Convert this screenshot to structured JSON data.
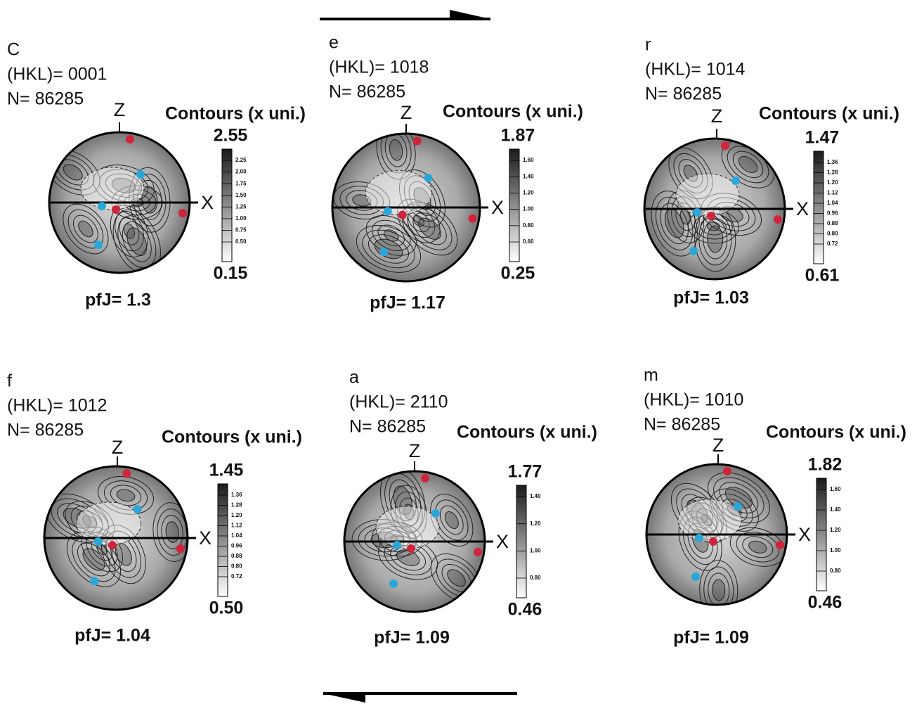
{
  "panels": [
    {
      "letter": "C",
      "hkl": "(HKL)= 0001",
      "n": "N= 86285",
      "z": "Z",
      "x": "X",
      "contours": "Contours (x uni.)",
      "max": "2.55",
      "scale": [
        "2.25",
        "2.00",
        "1.75",
        "1.50",
        "1.25",
        "1.00",
        "0.75",
        "0.50"
      ],
      "min": "0.15",
      "pfj": "pfJ= 1.3"
    },
    {
      "letter": "e",
      "hkl": "(HKL)= 1018",
      "n": "N= 86285",
      "z": "Z",
      "x": "X",
      "contours": "Contours (x uni.)",
      "max": "1.87",
      "scale": [
        "1.60",
        "1.40",
        "1.20",
        "1.00",
        "0.80",
        "0.60"
      ],
      "min": "0.25",
      "pfj": "pfJ= 1.17"
    },
    {
      "letter": "r",
      "hkl": "(HKL)= 1014",
      "n": "N= 86285",
      "z": "Z",
      "x": "X",
      "contours": "Contours (x uni.)",
      "max": "1.47",
      "scale": [
        "1.36",
        "1.28",
        "1.20",
        "1.12",
        "1.04",
        "0.96",
        "0.88",
        "0.80",
        "0.72"
      ],
      "min": "0.61",
      "pfj": "pfJ= 1.03"
    },
    {
      "letter": "f",
      "hkl": "(HKL)= 1012",
      "n": "N= 86285",
      "z": "Z",
      "x": "X",
      "contours": "Contours (x uni.)",
      "max": "1.45",
      "scale": [
        "1.36",
        "1.28",
        "1.20",
        "1.12",
        "1.04",
        "0.96",
        "0.88",
        "0.80",
        "0.72"
      ],
      "min": "0.50",
      "pfj": "pfJ= 1.04"
    },
    {
      "letter": "a",
      "hkl": "(HKL)= 2110",
      "n": "N= 86285",
      "z": "Z",
      "x": "X",
      "contours": "Contours (x uni.)",
      "max": "1.77",
      "scale": [
        "1.40",
        "1.20",
        "1.00",
        "0.80"
      ],
      "min": "0.46",
      "pfj": "pfJ= 1.09"
    },
    {
      "letter": "m",
      "hkl": "(HKL)= 1010",
      "n": "N= 86285",
      "z": "Z",
      "x": "X",
      "contours": "Contours (x uni.)",
      "max": "1.82",
      "scale": [
        "1.60",
        "1.40",
        "1.20",
        "1.00",
        "0.80"
      ],
      "min": "0.46",
      "pfj": "pfJ= 1.09"
    }
  ]
}
